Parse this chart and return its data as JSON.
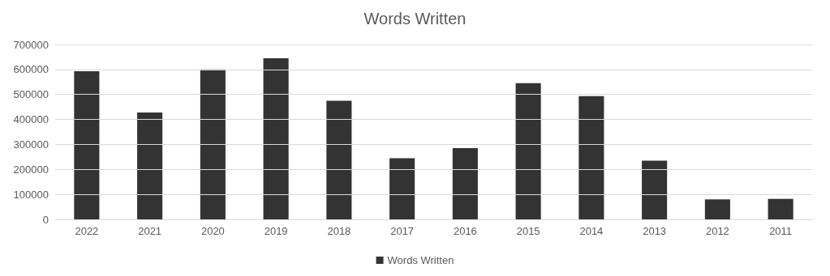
{
  "chart_data": {
    "type": "bar",
    "title": "Words Written",
    "categories": [
      "2022",
      "2021",
      "2020",
      "2019",
      "2018",
      "2017",
      "2016",
      "2015",
      "2014",
      "2013",
      "2012",
      "2011"
    ],
    "series": [
      {
        "name": "Words Written",
        "color": "#333333",
        "values": [
          593000,
          428000,
          600000,
          645000,
          475000,
          245000,
          285000,
          545000,
          493000,
          235000,
          80000,
          82000
        ]
      }
    ],
    "ylim": [
      0,
      700000
    ],
    "yticks": [
      0,
      100000,
      200000,
      300000,
      400000,
      500000,
      600000,
      700000
    ],
    "grid": "y",
    "legend": "bottom"
  }
}
